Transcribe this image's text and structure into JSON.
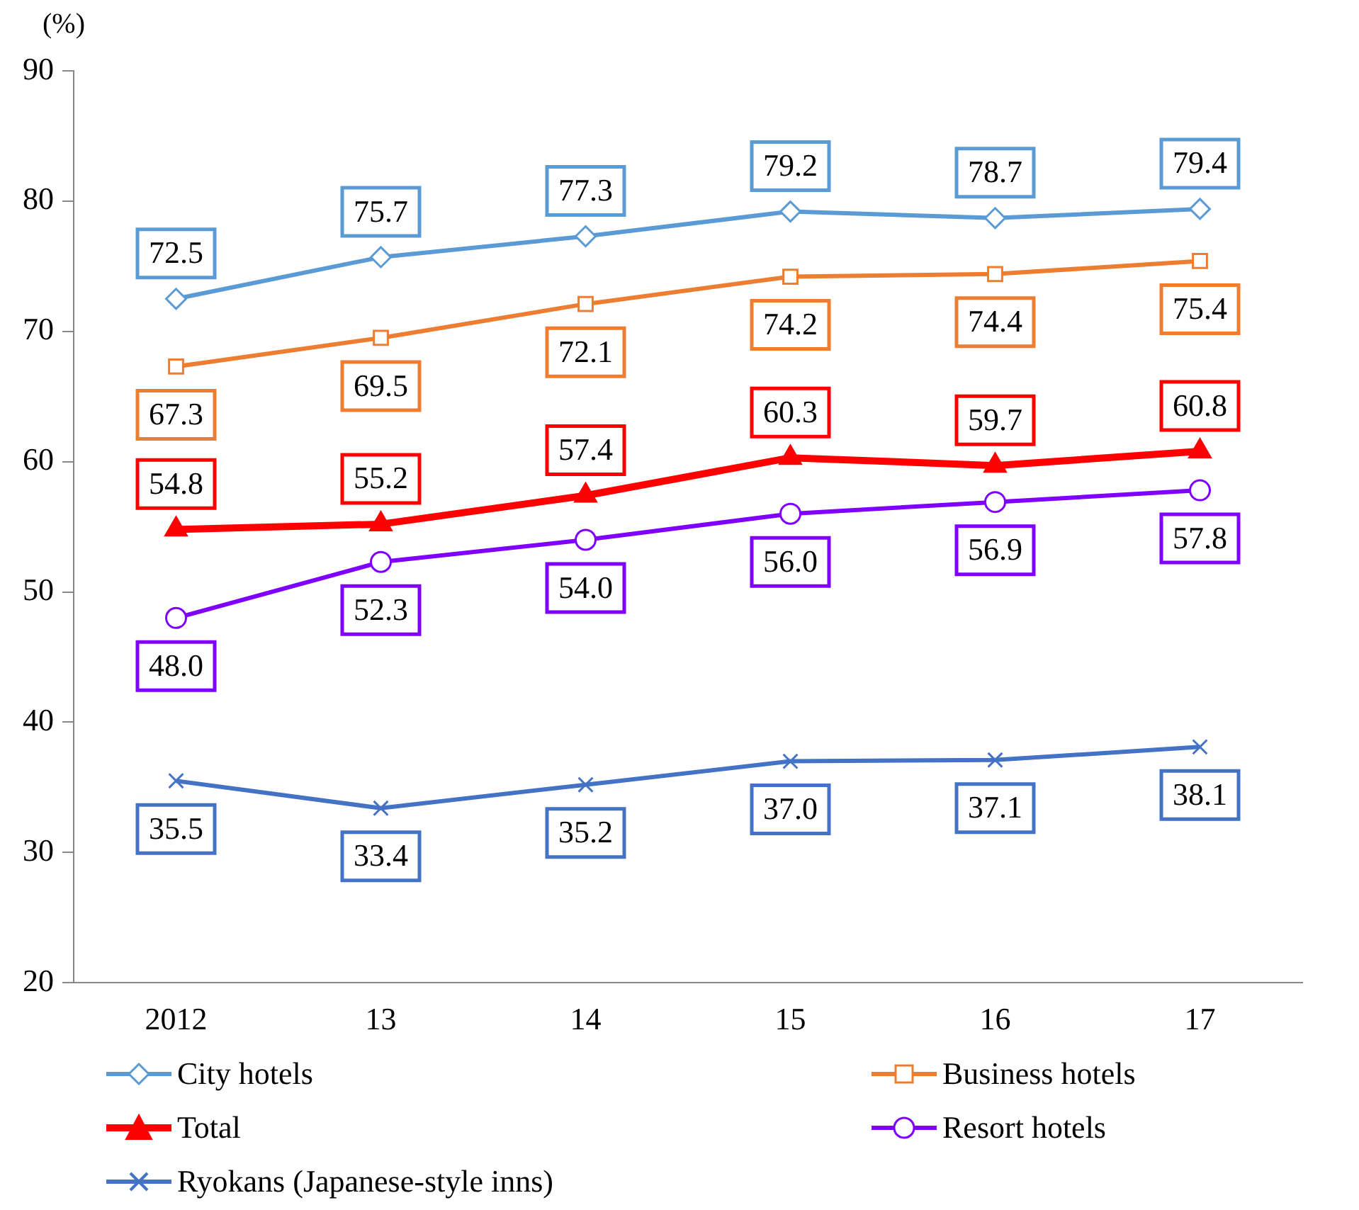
{
  "chart_data": {
    "type": "line",
    "ylabel": "(%)",
    "categories": [
      "2012",
      "13",
      "14",
      "15",
      "16",
      "17"
    ],
    "series": [
      {
        "name": "City hotels",
        "color": "#5b9bd5",
        "marker": "diamond",
        "values": [
          72.5,
          75.7,
          77.3,
          79.2,
          78.7,
          79.4
        ],
        "value_labels": [
          "72.5",
          "75.7",
          "77.3",
          "79.2",
          "78.7",
          "79.4"
        ]
      },
      {
        "name": "Business hotels",
        "color": "#ed7d31",
        "marker": "square",
        "values": [
          67.3,
          69.5,
          72.1,
          74.2,
          74.4,
          75.4
        ],
        "value_labels": [
          "67.3",
          "69.5",
          "72.1",
          "74.2",
          "74.4",
          "75.4"
        ]
      },
      {
        "name": "Total",
        "color": "#ff0000",
        "marker": "triangle",
        "values": [
          54.8,
          55.2,
          57.4,
          60.3,
          59.7,
          60.8
        ],
        "value_labels": [
          "54.8",
          "55.2",
          "57.4",
          "60.3",
          "59.7",
          "60.8"
        ]
      },
      {
        "name": "Resort hotels",
        "color": "#7f00ff",
        "marker": "circle",
        "values": [
          48.0,
          52.3,
          54.0,
          56.0,
          56.9,
          57.8
        ],
        "value_labels": [
          "48.0",
          "52.3",
          "54.0",
          "56.0",
          "56.9",
          "57.8"
        ]
      },
      {
        "name": "Ryokans (Japanese-style inns)",
        "color": "#4472c4",
        "marker": "cross",
        "values": [
          35.5,
          33.4,
          35.2,
          37.0,
          37.1,
          38.1
        ],
        "value_labels": [
          "35.5",
          "33.4",
          "35.2",
          "37.0",
          "37.1",
          "38.1"
        ]
      }
    ],
    "ylim": [
      20,
      90
    ],
    "yticks": [
      20,
      30,
      40,
      50,
      60,
      70,
      80,
      90
    ],
    "grid": false,
    "legend": "bottom"
  }
}
